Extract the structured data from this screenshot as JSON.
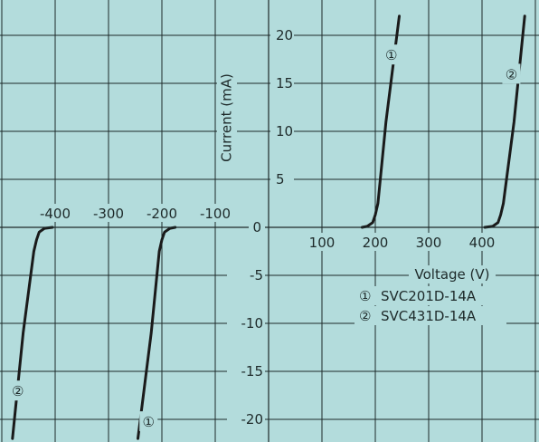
{
  "chart_data": {
    "type": "line",
    "title": "",
    "xlabel": "Voltage (V)",
    "ylabel": "Current (mA)",
    "xlim": [
      -500,
      500
    ],
    "ylim": [
      -22,
      22
    ],
    "grid": true,
    "x_ticks_positive": [
      "100",
      "200",
      "300",
      "400"
    ],
    "x_ticks_negative": [
      "-400",
      "-300",
      "-200",
      "-100"
    ],
    "y_ticks_positive": [
      "5",
      "10",
      "15",
      "20"
    ],
    "y_ticks_negative": [
      "-5",
      "-10",
      "-15",
      "-20"
    ],
    "y_zero": "0",
    "legend": [
      {
        "marker": "①",
        "name": "SVC201D-14A"
      },
      {
        "marker": "②",
        "name": "SVC431D-14A"
      }
    ],
    "series": [
      {
        "name": "SVC201D-14A",
        "marker": "①",
        "points": [
          [
            -245,
            -22
          ],
          [
            -220,
            -11
          ],
          [
            -205,
            -2.5
          ],
          [
            -200,
            -1.3
          ],
          [
            -195,
            -0.5
          ],
          [
            -185,
            -0.1
          ],
          [
            -175,
            0
          ],
          [
            175,
            0
          ],
          [
            185,
            0.1
          ],
          [
            195,
            0.5
          ],
          [
            200,
            1.3
          ],
          [
            205,
            2.5
          ],
          [
            220,
            11
          ],
          [
            245,
            22
          ]
        ]
      },
      {
        "name": "SVC431D-14A",
        "marker": "②",
        "points": [
          [
            -480,
            -22
          ],
          [
            -460,
            -11
          ],
          [
            -440,
            -2.5
          ],
          [
            -435,
            -1.3
          ],
          [
            -430,
            -0.5
          ],
          [
            -420,
            -0.1
          ],
          [
            -405,
            0
          ],
          [
            405,
            0
          ],
          [
            420,
            0.1
          ],
          [
            430,
            0.5
          ],
          [
            435,
            1.3
          ],
          [
            440,
            2.5
          ],
          [
            460,
            11
          ],
          [
            480,
            22
          ]
        ]
      }
    ],
    "curve_labels": [
      {
        "marker": "①",
        "x": 230,
        "y": 18
      },
      {
        "marker": "②",
        "x": 455,
        "y": 16
      },
      {
        "marker": "②",
        "x": -470,
        "y": -17
      },
      {
        "marker": "①",
        "x": -225,
        "y": -20.2
      }
    ]
  }
}
